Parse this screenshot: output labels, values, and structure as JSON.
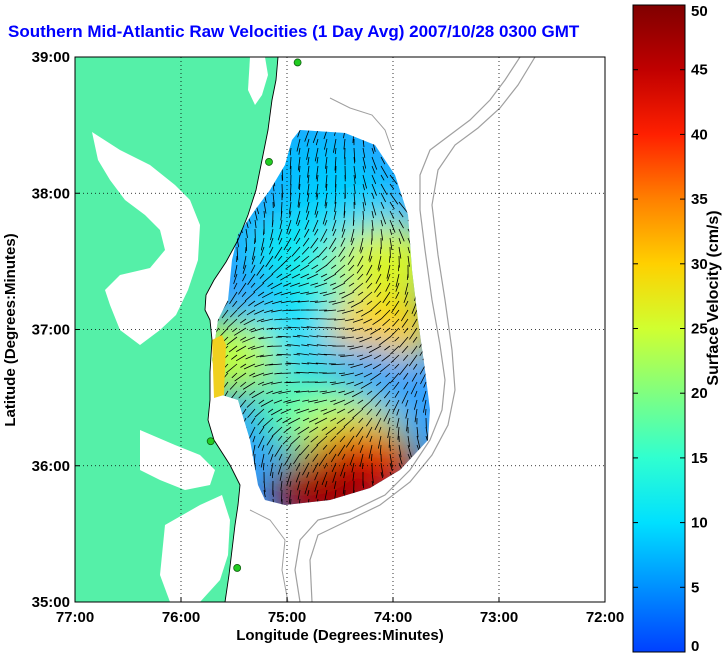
{
  "title": "Southern Mid-Atlantic Raw Velocities (1 Day Avg) 2007/10/28 0300 GMT",
  "map": {
    "xlabel": "Longitude (Degrees:Minutes)",
    "ylabel": "Latitude (Degrees:Minutes)",
    "lon_range": [
      -77,
      -72
    ],
    "lat_range": [
      35,
      39
    ],
    "x_ticks": [
      {
        "value": -77,
        "label": "77:00"
      },
      {
        "value": -76,
        "label": "76:00"
      },
      {
        "value": -75,
        "label": "75:00"
      },
      {
        "value": -74,
        "label": "74:00"
      },
      {
        "value": -73,
        "label": "73:00"
      },
      {
        "value": -72,
        "label": "72:00"
      }
    ],
    "y_ticks": [
      {
        "value": 39,
        "label": "39:00"
      },
      {
        "value": 38,
        "label": "38:00"
      },
      {
        "value": 37,
        "label": "37:00"
      },
      {
        "value": 36,
        "label": "36:00"
      },
      {
        "value": 35,
        "label": "35:00"
      }
    ],
    "grid": "dotted",
    "land_color": "#55f0a8",
    "bathymetry_color": "#a0a0a0",
    "site_marker_color": "#22cc22",
    "sites": [
      {
        "lon": -74.9,
        "lat": 38.96
      },
      {
        "lon": -75.17,
        "lat": 38.23
      },
      {
        "lon": -75.72,
        "lat": 36.18
      },
      {
        "lon": -75.47,
        "lat": 35.25
      }
    ]
  },
  "colorbar": {
    "label": "Surface Velocity (cm/s)",
    "min": 0,
    "max": 50,
    "ticks": [
      {
        "value": 0,
        "label": "0"
      },
      {
        "value": 5,
        "label": "5"
      },
      {
        "value": 10,
        "label": "10"
      },
      {
        "value": 15,
        "label": "15"
      },
      {
        "value": 20,
        "label": "20"
      },
      {
        "value": 25,
        "label": "25"
      },
      {
        "value": 30,
        "label": "30"
      },
      {
        "value": 35,
        "label": "35"
      },
      {
        "value": 40,
        "label": "40"
      },
      {
        "value": 45,
        "label": "45"
      },
      {
        "value": 50,
        "label": "50"
      }
    ],
    "colors": [
      "#0040ff",
      "#0090ff",
      "#00e0ff",
      "#30ffd0",
      "#80ff80",
      "#d0ff30",
      "#ffd000",
      "#ff8000",
      "#ff2000",
      "#c00000",
      "#800000"
    ]
  },
  "chart_data": {
    "type": "heatmap",
    "title": "Southern Mid-Atlantic Raw Velocities (1 Day Avg) 2007/10/28 0300 GMT",
    "xlabel": "Longitude (Degrees:Minutes)",
    "ylabel": "Latitude (Degrees:Minutes)",
    "xlim": [
      -77,
      -72
    ],
    "ylim": [
      35,
      39
    ],
    "value_range": [
      0,
      50
    ],
    "value_unit": "cm/s",
    "regions": [
      {
        "lon": -74.7,
        "lat": 38.2,
        "speed": 8
      },
      {
        "lon": -74.4,
        "lat": 37.9,
        "speed": 9
      },
      {
        "lon": -74.9,
        "lat": 37.6,
        "speed": 11
      },
      {
        "lon": -74.5,
        "lat": 37.3,
        "speed": 14
      },
      {
        "lon": -74.9,
        "lat": 37.0,
        "speed": 10
      },
      {
        "lon": -74.1,
        "lat": 37.0,
        "speed": 30
      },
      {
        "lon": -74.05,
        "lat": 37.5,
        "speed": 26
      },
      {
        "lon": -74.3,
        "lat": 36.6,
        "speed": 6
      },
      {
        "lon": -74.8,
        "lat": 36.4,
        "speed": 17
      },
      {
        "lon": -74.4,
        "lat": 36.2,
        "speed": 25
      },
      {
        "lon": -74.3,
        "lat": 36.0,
        "speed": 42
      },
      {
        "lon": -74.6,
        "lat": 35.8,
        "speed": 47
      },
      {
        "lon": -75.6,
        "lat": 36.8,
        "speed": 24
      }
    ]
  }
}
